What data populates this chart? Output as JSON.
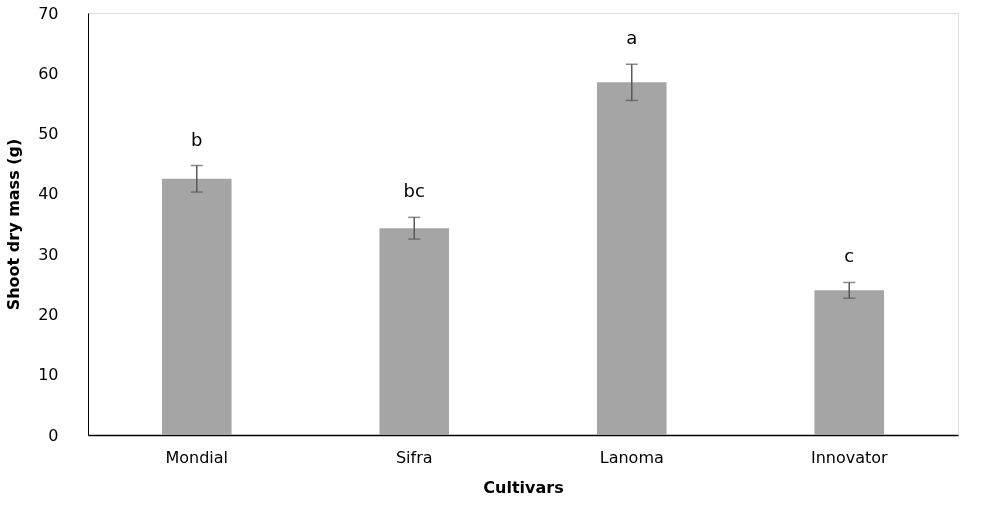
{
  "chart_data": {
    "type": "bar",
    "xlabel": "Cultivars",
    "ylabel": "Shoot dry mass (g)",
    "categories": [
      "Mondial",
      "Sifra",
      "Lanoma",
      "Innovator"
    ],
    "values": [
      42.5,
      34.3,
      58.5,
      24.0
    ],
    "errors": [
      2.2,
      1.8,
      3.0,
      1.3
    ],
    "color": "#a5a5a5",
    "ylim": [
      0,
      70
    ],
    "yticks": [
      0,
      10,
      20,
      30,
      40,
      50,
      60,
      70
    ],
    "grid": false,
    "annotations": [
      "b",
      "bc",
      "a",
      "c"
    ]
  }
}
